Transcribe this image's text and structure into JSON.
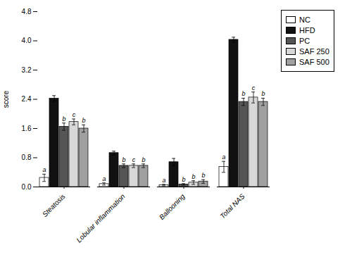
{
  "chart_data": {
    "type": "bar",
    "categories": [
      "Steatosis",
      "Lobular inflammation",
      "Ballooning",
      "Total NAS"
    ],
    "series": [
      {
        "name": "NC",
        "color": "#ffffff",
        "values": [
          0.25,
          0.08,
          0.05,
          0.55
        ],
        "errors": [
          0.1,
          0.03,
          0.02,
          0.15
        ],
        "significance_labels": [
          "a",
          "a",
          "a",
          "a"
        ]
      },
      {
        "name": "HFD",
        "color": "#111111",
        "values": [
          2.42,
          0.93,
          0.68,
          4.03
        ],
        "errors": [
          0.08,
          0.05,
          0.1,
          0.07
        ],
        "significance_labels": [
          null,
          null,
          null,
          null
        ]
      },
      {
        "name": "PC",
        "color": "#555555",
        "values": [
          1.65,
          0.58,
          0.07,
          2.33
        ],
        "errors": [
          0.1,
          0.05,
          0.02,
          0.1
        ],
        "significance_labels": [
          "b",
          "b",
          "b",
          "b"
        ]
      },
      {
        "name": "SAF 250",
        "color": "#d8d8d8",
        "values": [
          1.78,
          0.58,
          0.12,
          2.45
        ],
        "errors": [
          0.08,
          0.05,
          0.05,
          0.15
        ],
        "significance_labels": [
          "c",
          "c",
          "b",
          "c"
        ]
      },
      {
        "name": "SAF 500",
        "color": "#a0a0a0",
        "values": [
          1.6,
          0.58,
          0.15,
          2.33
        ],
        "errors": [
          0.1,
          0.05,
          0.05,
          0.1
        ],
        "significance_labels": [
          "b",
          "b",
          "b",
          "b"
        ]
      }
    ],
    "ylabel": "score",
    "ylim": [
      0,
      4.8
    ],
    "yticks": [
      {
        "value": 0,
        "label": "0.0"
      },
      0.8,
      1.6,
      2.4,
      3.2,
      {
        "value": 4,
        "label": "4.0"
      },
      4.8
    ],
    "grid": false,
    "legend": "right"
  }
}
